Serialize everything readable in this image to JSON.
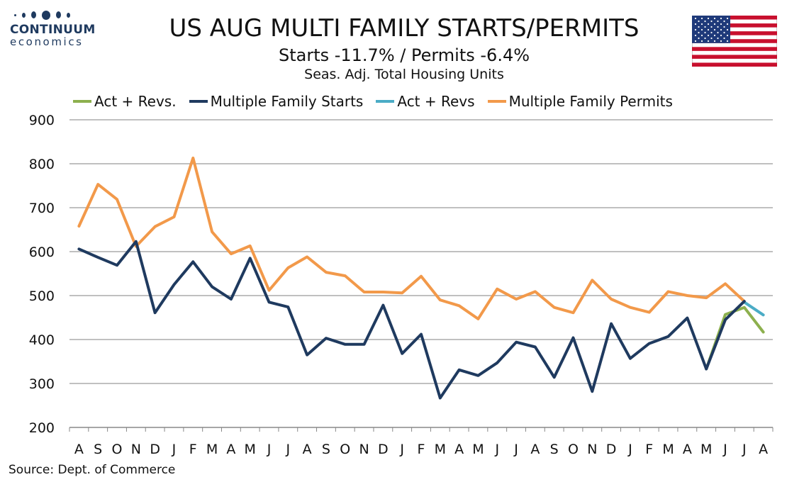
{
  "brand": {
    "name": "CONTINUUM",
    "sub": "economics"
  },
  "title": "US AUG MULTI FAMILY STARTS/PERMITS",
  "subtitle": "Starts  -11.7% / Permits -6.4%",
  "subtitle2": "Seas. Adj. Total Housing Units",
  "flag_icon": "us-flag-icon",
  "source": "Source: Dept. of Commerce",
  "chart_data": {
    "type": "line",
    "ylim": [
      200,
      900
    ],
    "yticks": [
      900,
      800,
      700,
      600,
      500,
      400,
      300,
      200
    ],
    "grid": true,
    "legend_position": "top",
    "categories": [
      "A",
      "S",
      "O",
      "N",
      "D",
      "J",
      "F",
      "M",
      "A",
      "M",
      "J",
      "J",
      "A",
      "S",
      "O",
      "N",
      "D",
      "J",
      "F",
      "M",
      "A",
      "M",
      "J",
      "J",
      "A",
      "S",
      "O",
      "N",
      "D",
      "J",
      "F",
      "M",
      "A",
      "M",
      "J",
      "J",
      "A"
    ],
    "series": [
      {
        "name": "Act + Revs.",
        "color": "#8db04e",
        "values": [
          null,
          null,
          null,
          null,
          null,
          null,
          null,
          null,
          null,
          null,
          null,
          null,
          null,
          null,
          null,
          null,
          null,
          null,
          null,
          null,
          null,
          null,
          null,
          null,
          null,
          null,
          null,
          null,
          null,
          null,
          null,
          null,
          null,
          333,
          457,
          473,
          417
        ]
      },
      {
        "name": "Multiple Family Starts",
        "color": "#1f3a5f",
        "values": [
          606,
          587,
          569,
          623,
          461,
          525,
          577,
          520,
          492,
          585,
          485,
          474,
          365,
          403,
          389,
          389,
          478,
          368,
          412,
          267,
          331,
          318,
          347,
          394,
          383,
          314,
          404,
          282,
          436,
          357,
          391,
          407,
          449,
          333,
          445,
          487,
          null
        ]
      },
      {
        "name": "Act + Revs",
        "color": "#4bacc6",
        "values": [
          null,
          null,
          null,
          null,
          null,
          null,
          null,
          null,
          null,
          null,
          null,
          null,
          null,
          null,
          null,
          null,
          null,
          null,
          null,
          null,
          null,
          null,
          null,
          null,
          null,
          null,
          null,
          null,
          null,
          null,
          null,
          null,
          null,
          null,
          null,
          485,
          456
        ]
      },
      {
        "name": "Multiple Family Permits",
        "color": "#f2994a",
        "values": [
          658,
          753,
          719,
          612,
          657,
          679,
          813,
          645,
          595,
          613,
          512,
          563,
          588,
          553,
          545,
          508,
          508,
          506,
          544,
          490,
          477,
          447,
          515,
          492,
          509,
          473,
          461,
          535,
          492,
          473,
          462,
          509,
          500,
          495,
          527,
          487,
          null
        ]
      }
    ]
  }
}
